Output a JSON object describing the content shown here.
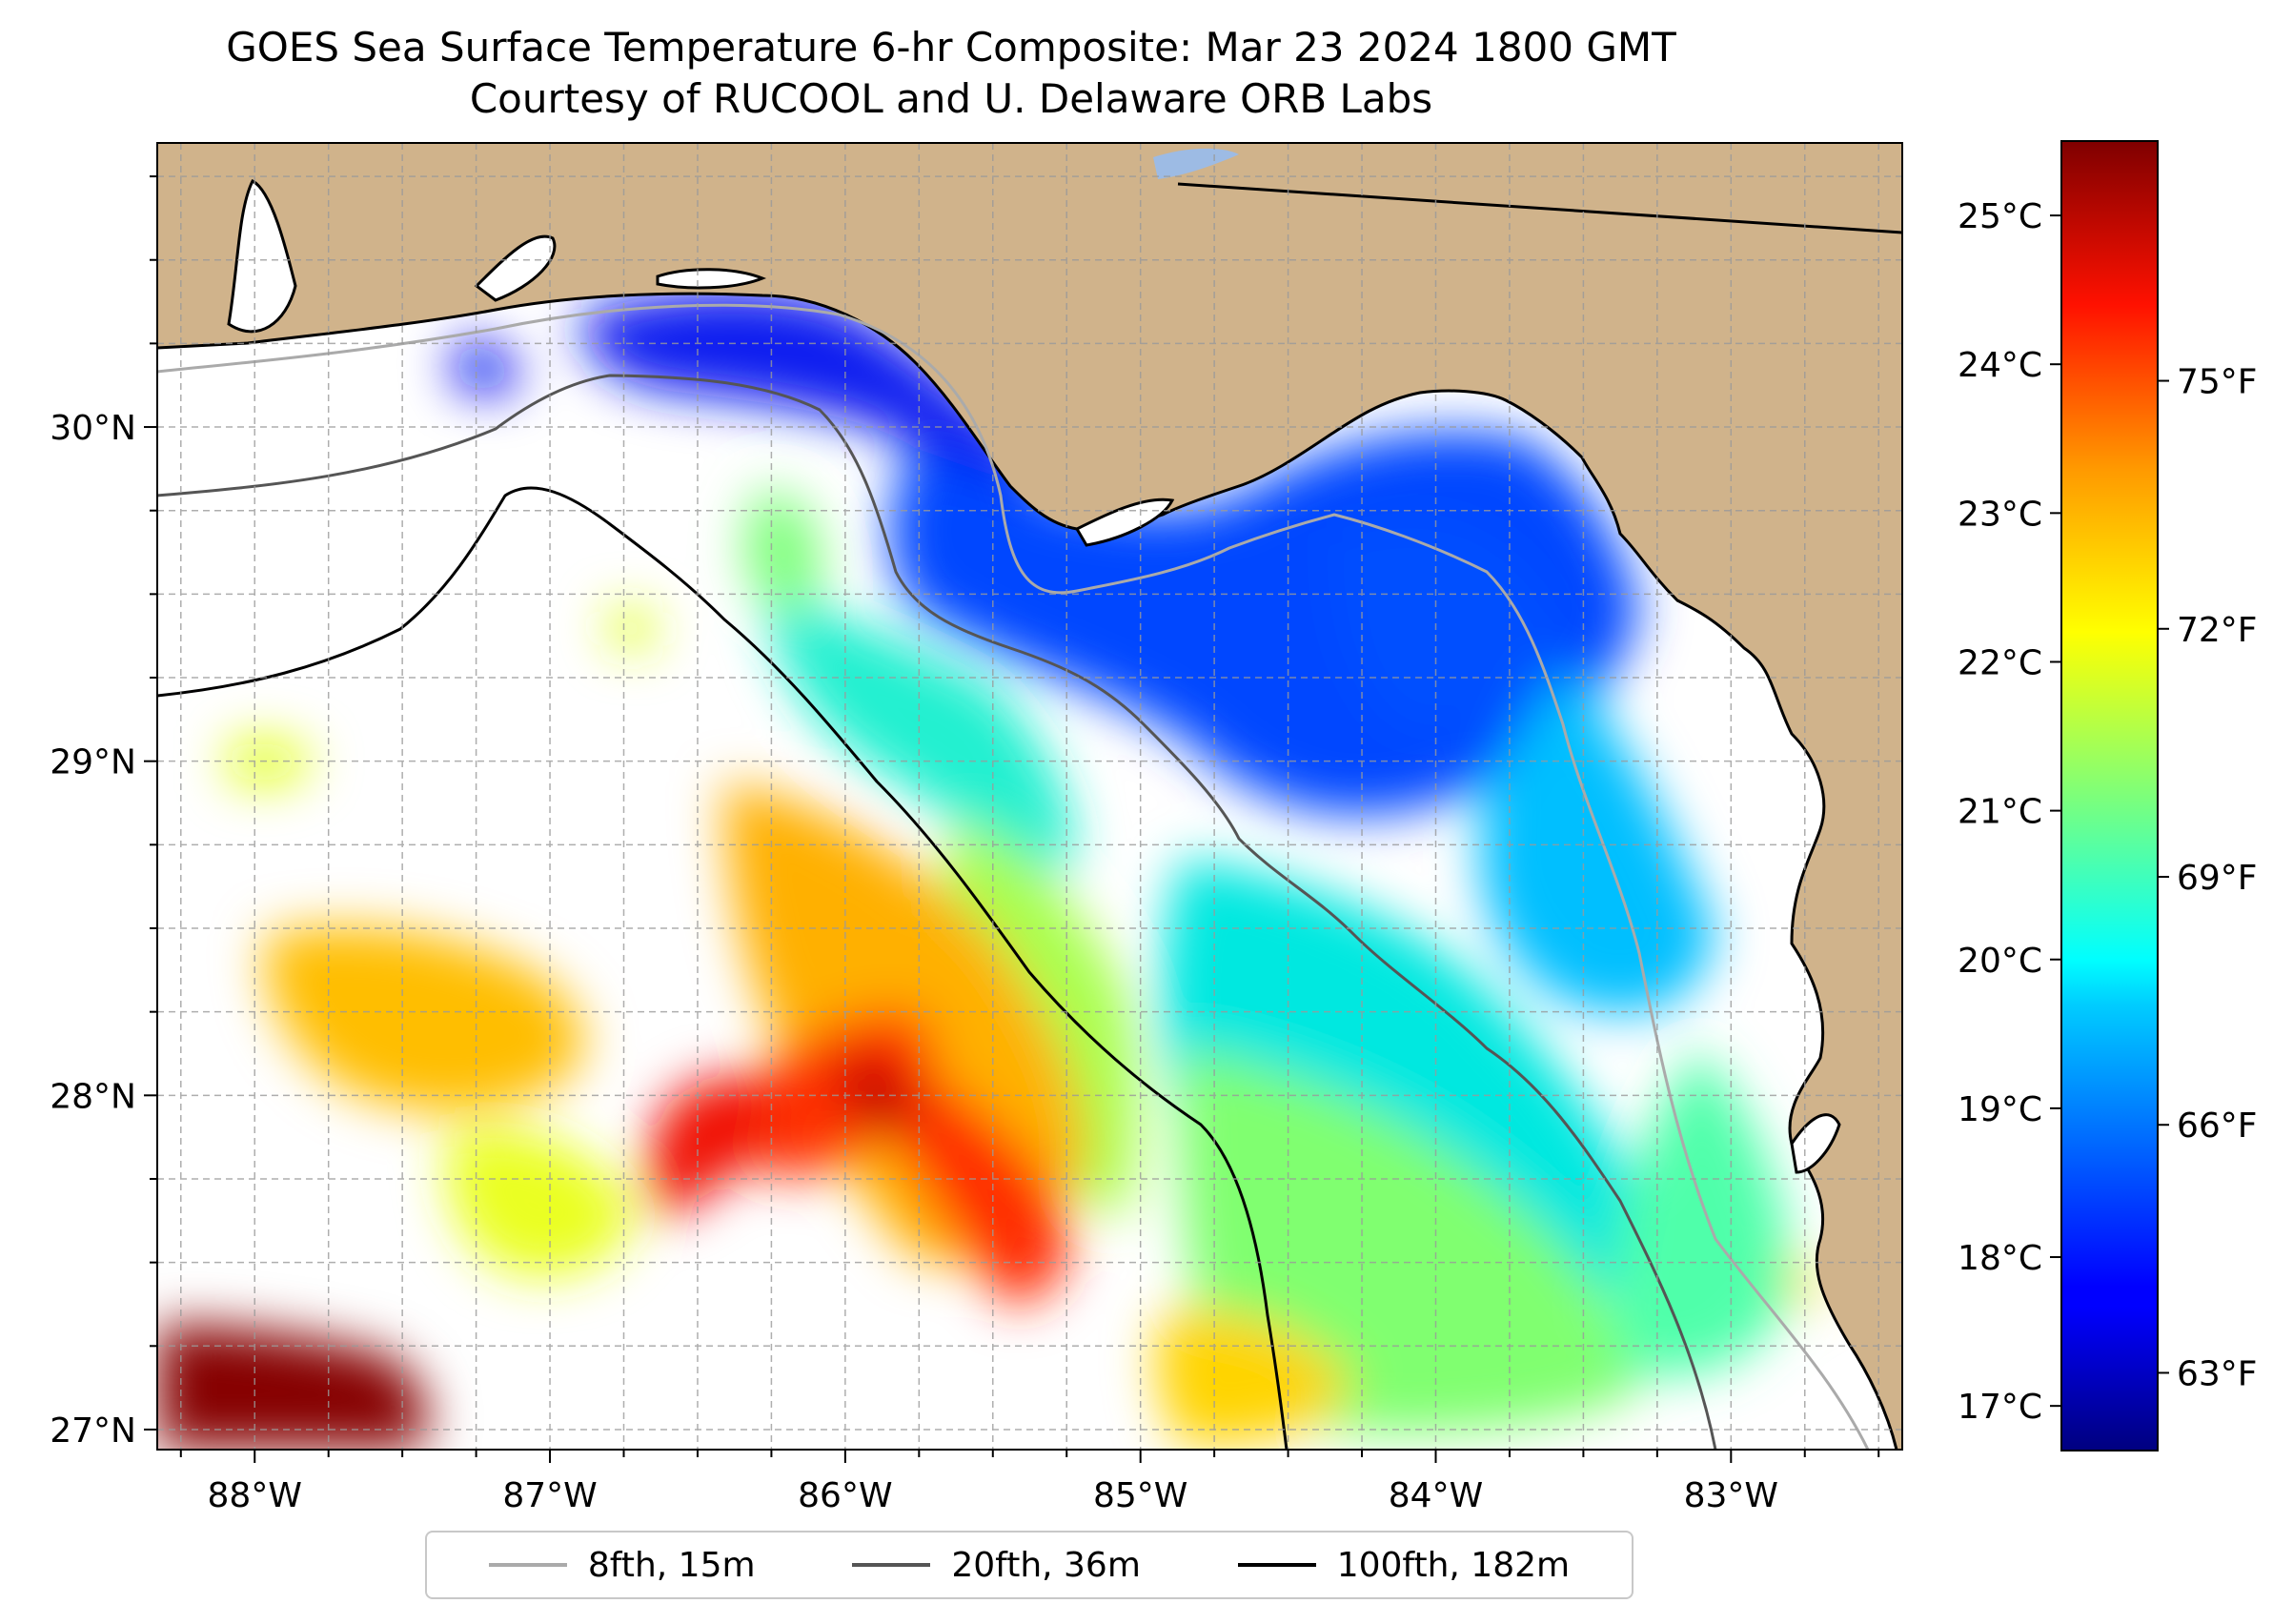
{
  "title": "GOES Sea Surface Temperature 6-hr Composite: Mar 23 2024 1800 GMT",
  "subtitle": "Courtesy of RUCOOL and U. Delaware ORB Labs",
  "map": {
    "lon_range": [
      -88.33,
      -82.42
    ],
    "lat_range": [
      26.94,
      30.85
    ],
    "lon_ticks": [
      {
        "value": -88,
        "label": "88°W"
      },
      {
        "value": -87,
        "label": "87°W"
      },
      {
        "value": -86,
        "label": "86°W"
      },
      {
        "value": -85,
        "label": "85°W"
      },
      {
        "value": -84,
        "label": "84°W"
      },
      {
        "value": -83,
        "label": "83°W"
      }
    ],
    "lat_ticks": [
      {
        "value": 27,
        "label": "27°N"
      },
      {
        "value": 28,
        "label": "28°N"
      },
      {
        "value": 29,
        "label": "29°N"
      },
      {
        "value": 30,
        "label": "30°N"
      }
    ],
    "gridlines": true,
    "land_color": "#d0b38b",
    "water_color": "#ffffff"
  },
  "colorbar": {
    "colormap": "jet",
    "range_c": [
      16.7,
      25.5
    ],
    "celsius_ticks": [
      {
        "value": 17,
        "label": "17°C"
      },
      {
        "value": 18,
        "label": "18°C"
      },
      {
        "value": 19,
        "label": "19°C"
      },
      {
        "value": 20,
        "label": "20°C"
      },
      {
        "value": 21,
        "label": "21°C"
      },
      {
        "value": 22,
        "label": "22°C"
      },
      {
        "value": 23,
        "label": "23°C"
      },
      {
        "value": 24,
        "label": "24°C"
      },
      {
        "value": 25,
        "label": "25°C"
      }
    ],
    "fahrenheit_ticks": [
      {
        "value": 63,
        "label": "63°F"
      },
      {
        "value": 66,
        "label": "66°F"
      },
      {
        "value": 69,
        "label": "69°F"
      },
      {
        "value": 72,
        "label": "72°F"
      },
      {
        "value": 75,
        "label": "75°F"
      }
    ]
  },
  "legend": {
    "placement": "bottom-center",
    "items": [
      {
        "label": "8fth, 15m",
        "color": "#aaaaaa"
      },
      {
        "label": "20fth, 36m",
        "color": "#555555"
      },
      {
        "label": "100fth, 182m",
        "color": "#000000"
      }
    ]
  }
}
